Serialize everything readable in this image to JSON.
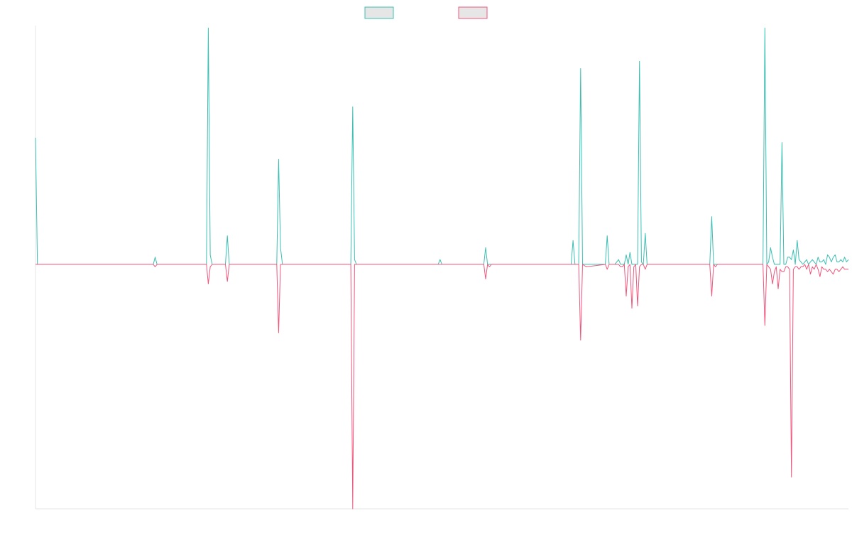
{
  "chart_data": {
    "type": "line",
    "title": "",
    "xlabel": "",
    "ylabel": "",
    "ylim": [
      -1,
      1
    ],
    "grid": false,
    "legend": {
      "placement": "top-center",
      "entries": [
        "",
        ""
      ]
    },
    "series": [
      {
        "color": "#3bbfb3",
        "points": [
          [
            0,
            0.53
          ],
          [
            1,
            0
          ],
          [
            10,
            0
          ],
          [
            30,
            0
          ],
          [
            33,
            0
          ],
          [
            35,
            0
          ],
          [
            62,
            0
          ],
          [
            63,
            0.03
          ],
          [
            64,
            0
          ],
          [
            70,
            0
          ],
          [
            90,
            0
          ],
          [
            91,
            0.99
          ],
          [
            92,
            0.04
          ],
          [
            93,
            0
          ],
          [
            100,
            0
          ],
          [
            101,
            0.12
          ],
          [
            102,
            0
          ],
          [
            110,
            0
          ],
          [
            127,
            0
          ],
          [
            128,
            0.44
          ],
          [
            129,
            0.07
          ],
          [
            130,
            0
          ],
          [
            140,
            0
          ],
          [
            166,
            0
          ],
          [
            167,
            0.66
          ],
          [
            168,
            0.02
          ],
          [
            169,
            0
          ],
          [
            200,
            0
          ],
          [
            212,
            0
          ],
          [
            213,
            0.02
          ],
          [
            214,
            0
          ],
          [
            215,
            0
          ],
          [
            236,
            0
          ],
          [
            237,
            0.07
          ],
          [
            238,
            0
          ],
          [
            260,
            0
          ],
          [
            282,
            0
          ],
          [
            283,
            0.1
          ],
          [
            284,
            0
          ],
          [
            286,
            0
          ],
          [
            287,
            0.82
          ],
          [
            288,
            0
          ],
          [
            290,
            0
          ],
          [
            300,
            0
          ],
          [
            301,
            0.12
          ],
          [
            302,
            0
          ],
          [
            305,
            0
          ],
          [
            307,
            0.02
          ],
          [
            308,
            0
          ],
          [
            310,
            0
          ],
          [
            311,
            0.04
          ],
          [
            312,
            0
          ],
          [
            313,
            0.05
          ],
          [
            314,
            0
          ],
          [
            315,
            0
          ],
          [
            317,
            0
          ],
          [
            318,
            0.85
          ],
          [
            319,
            0.01
          ],
          [
            320,
            0
          ],
          [
            321,
            0.13
          ],
          [
            322,
            0
          ],
          [
            330,
            0
          ],
          [
            345,
            0
          ],
          [
            350,
            0
          ],
          [
            355,
            0
          ],
          [
            356,
            0.2
          ],
          [
            357,
            0
          ],
          [
            360,
            0
          ],
          [
            380,
            0
          ],
          [
            383,
            0
          ],
          [
            384,
            0.99
          ],
          [
            385,
            0
          ],
          [
            386,
            0.01
          ],
          [
            387,
            0.07
          ],
          [
            388,
            0.03
          ],
          [
            389,
            0
          ],
          [
            390,
            0
          ],
          [
            391,
            0
          ],
          [
            392,
            0
          ],
          [
            393,
            0.51
          ],
          [
            394,
            0
          ],
          [
            395,
            0
          ],
          [
            396,
            0.03
          ],
          [
            397,
            0.03
          ],
          [
            398,
            0.02
          ],
          [
            399,
            0.06
          ],
          [
            400,
            0
          ],
          [
            401,
            0.1
          ],
          [
            402,
            0.02
          ],
          [
            403,
            0.01
          ],
          [
            404,
            0
          ],
          [
            405,
            0.01
          ],
          [
            406,
            0.02
          ],
          [
            407,
            0
          ],
          [
            408,
            0.01
          ],
          [
            409,
            0.02
          ],
          [
            410,
            0.01
          ],
          [
            411,
            0
          ],
          [
            412,
            0.03
          ],
          [
            413,
            0.01
          ],
          [
            414,
            0.01
          ],
          [
            415,
            0.02
          ],
          [
            416,
            0
          ],
          [
            417,
            0.04
          ],
          [
            418,
            0.03
          ],
          [
            419,
            0.01
          ],
          [
            420,
            0.03
          ],
          [
            421,
            0.04
          ],
          [
            422,
            0.01
          ],
          [
            423,
            0.01
          ],
          [
            424,
            0.02
          ],
          [
            425,
            0.01
          ],
          [
            426,
            0.03
          ],
          [
            427,
            0.01
          ],
          [
            428,
            0.02
          ]
        ]
      },
      {
        "color": "#f0567c",
        "points": [
          [
            0,
            0
          ],
          [
            33,
            0
          ],
          [
            34,
            0
          ],
          [
            35,
            0
          ],
          [
            62,
            0
          ],
          [
            63,
            -0.01
          ],
          [
            64,
            0
          ],
          [
            90,
            0
          ],
          [
            91,
            -0.08
          ],
          [
            92,
            -0.01
          ],
          [
            93,
            0
          ],
          [
            100,
            0
          ],
          [
            101,
            -0.07
          ],
          [
            102,
            0
          ],
          [
            127,
            0
          ],
          [
            128,
            -0.28
          ],
          [
            129,
            0
          ],
          [
            130,
            0
          ],
          [
            140,
            0
          ],
          [
            142,
            0
          ],
          [
            143,
            0
          ],
          [
            144,
            0
          ],
          [
            166,
            0
          ],
          [
            167,
            -1.0
          ],
          [
            168,
            0
          ],
          [
            169,
            0
          ],
          [
            212,
            0
          ],
          [
            213,
            0
          ],
          [
            214,
            0
          ],
          [
            236,
            0
          ],
          [
            237,
            -0.06
          ],
          [
            238,
            0
          ],
          [
            239,
            -0.01
          ],
          [
            240,
            0
          ],
          [
            282,
            0
          ],
          [
            283,
            0
          ],
          [
            284,
            0
          ],
          [
            286,
            0
          ],
          [
            287,
            -0.31
          ],
          [
            288,
            0
          ],
          [
            290,
            -0.01
          ],
          [
            300,
            0
          ],
          [
            301,
            -0.02
          ],
          [
            302,
            0
          ],
          [
            305,
            0
          ],
          [
            307,
            0
          ],
          [
            308,
            -0.01
          ],
          [
            309,
            -0.01
          ],
          [
            310,
            0
          ],
          [
            311,
            -0.13
          ],
          [
            312,
            -0.01
          ],
          [
            313,
            0
          ],
          [
            314,
            -0.18
          ],
          [
            315,
            -0.01
          ],
          [
            316,
            0
          ],
          [
            317,
            -0.17
          ],
          [
            318,
            -0.01
          ],
          [
            319,
            0
          ],
          [
            320,
            0
          ],
          [
            321,
            -0.02
          ],
          [
            322,
            0
          ],
          [
            340,
            0
          ],
          [
            355,
            0
          ],
          [
            356,
            -0.13
          ],
          [
            357,
            0
          ],
          [
            358,
            -0.01
          ],
          [
            359,
            0
          ],
          [
            360,
            0
          ],
          [
            381,
            0
          ],
          [
            383,
            0
          ],
          [
            384,
            -0.25
          ],
          [
            385,
            0
          ],
          [
            386,
            -0.01
          ],
          [
            387,
            -0.02
          ],
          [
            388,
            -0.08
          ],
          [
            389,
            -0.03
          ],
          [
            390,
            -0.01
          ],
          [
            391,
            -0.1
          ],
          [
            392,
            -0.02
          ],
          [
            393,
            -0.03
          ],
          [
            394,
            -0.03
          ],
          [
            395,
            -0.01
          ],
          [
            396,
            -0.01
          ],
          [
            397,
            -0.02
          ],
          [
            398,
            -0.87
          ],
          [
            399,
            -0.02
          ],
          [
            400,
            -0.01
          ],
          [
            401,
            -0.01
          ],
          [
            402,
            -0.02
          ],
          [
            403,
            -0.01
          ],
          [
            404,
            -0.01
          ],
          [
            405,
            0
          ],
          [
            406,
            -0.02
          ],
          [
            407,
            0
          ],
          [
            408,
            -0.04
          ],
          [
            409,
            -0.01
          ],
          [
            410,
            -0.02
          ],
          [
            411,
            0
          ],
          [
            412,
            -0.02
          ],
          [
            413,
            -0.05
          ],
          [
            414,
            -0.01
          ],
          [
            415,
            -0.02
          ],
          [
            416,
            -0.02
          ],
          [
            417,
            -0.03
          ],
          [
            418,
            -0.02
          ],
          [
            419,
            -0.03
          ],
          [
            420,
            -0.04
          ],
          [
            421,
            -0.02
          ],
          [
            422,
            -0.02
          ],
          [
            423,
            -0.03
          ],
          [
            424,
            -0.02
          ],
          [
            425,
            -0.01
          ],
          [
            426,
            -0.02
          ],
          [
            427,
            -0.02
          ],
          [
            428,
            -0.02
          ]
        ]
      }
    ]
  }
}
